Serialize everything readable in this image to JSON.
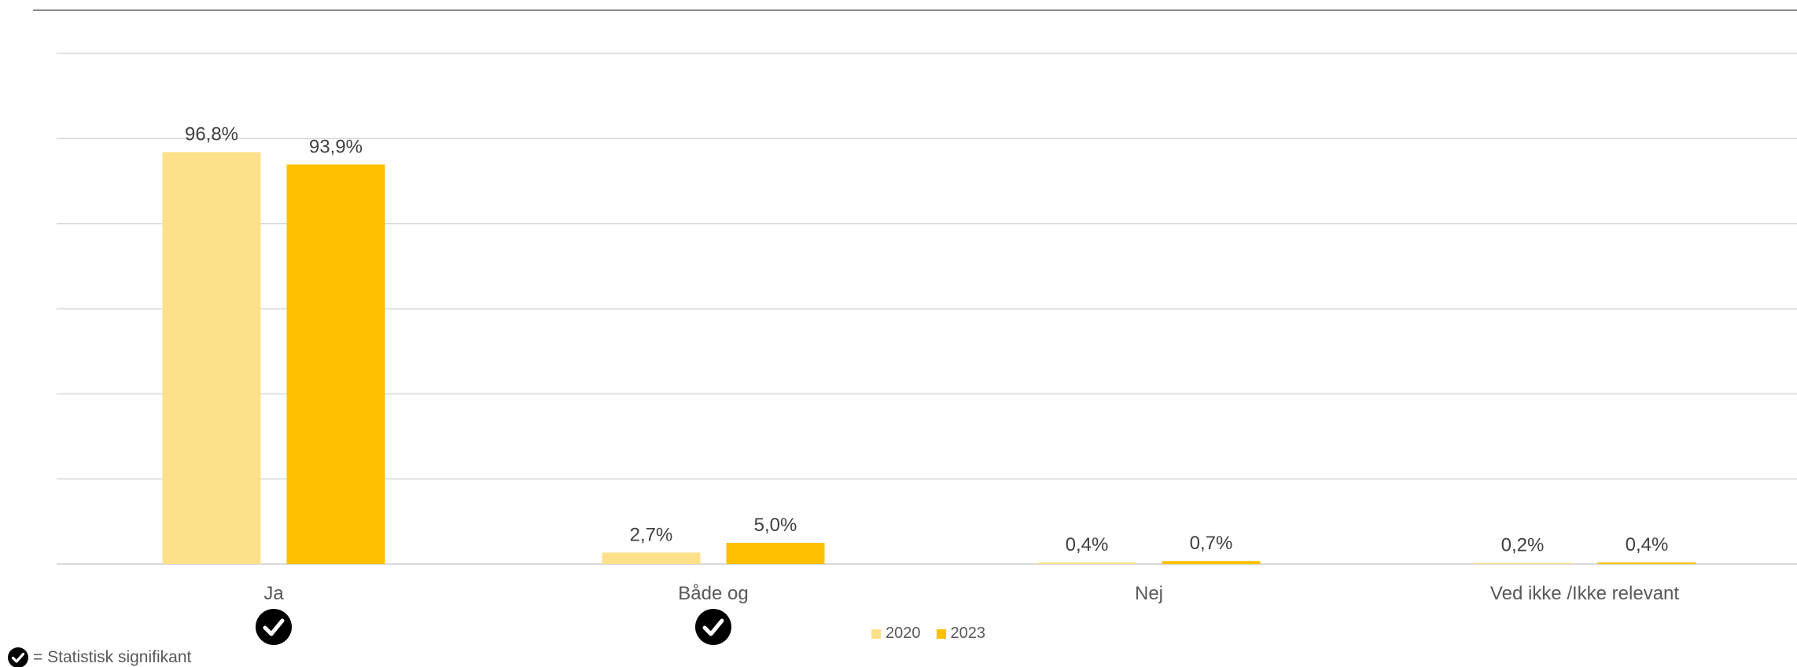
{
  "chart_data": {
    "type": "bar",
    "categories": [
      "Ja",
      "Både og",
      "Nej",
      "Ved ikke /Ikke relevant"
    ],
    "series": [
      {
        "name": "2020",
        "values": [
          96.8,
          2.7,
          0.4,
          0.2
        ],
        "labels": [
          "96,8%",
          "2,7%",
          "0,4%",
          "0,2%"
        ],
        "color": "#FDE18A"
      },
      {
        "name": "2023",
        "values": [
          93.9,
          5.0,
          0.7,
          0.4
        ],
        "labels": [
          "93,9%",
          "5,0%",
          "0,7%",
          "0,4%"
        ],
        "color": "#FFC000"
      }
    ],
    "ylim": [
      0,
      120
    ],
    "grid": true,
    "legend_position": "bottom",
    "significant_categories": [
      "Ja",
      "Både og"
    ]
  },
  "colors": {
    "gridline": "#D9D9D9",
    "axis_text": "#595959",
    "data_label": "#404040",
    "badge": "#000000"
  },
  "footnote": {
    "icon": "checkmark-circle-icon",
    "text": "= Statistisk signifikant"
  }
}
